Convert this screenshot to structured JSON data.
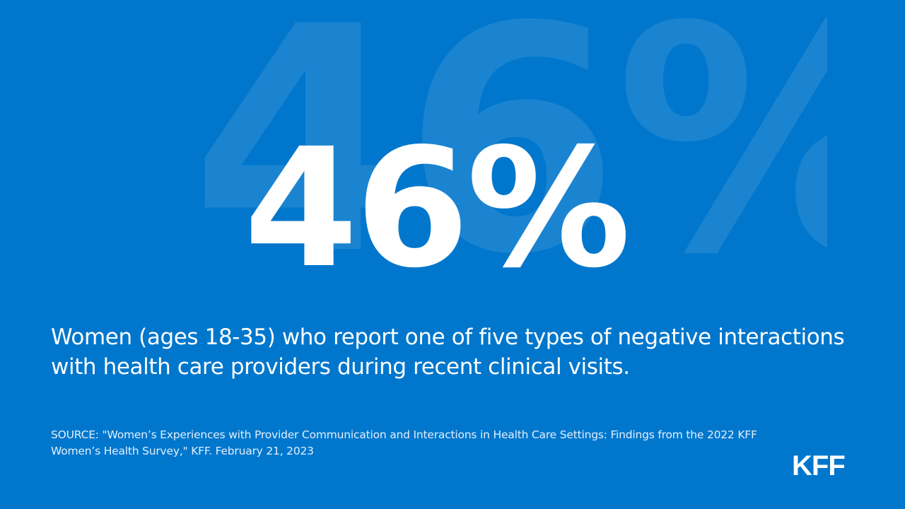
{
  "stat": {
    "value": "46%",
    "background_value": "46%"
  },
  "description": "Women (ages 18-35)  who report one of five types of negative interactions with health care providers during recent clinical visits.",
  "source": "SOURCE: \"Women’s Experiences with Provider Communication and Interactions in Health Care Settings: Findings from the 2022 KFF Women’s Health Survey,\" KFF. February 21, 2023",
  "logo": {
    "text": "KFF"
  },
  "colors": {
    "background": "#0077CC",
    "text": "#FFFFFF"
  }
}
